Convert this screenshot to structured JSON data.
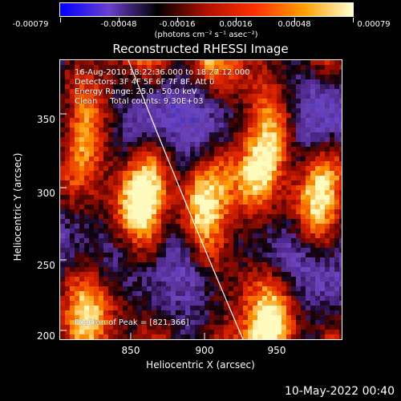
{
  "colorbar": {
    "tick_labels": [
      "-0.00079",
      "-0.00048",
      "-0.00016",
      "0.00016",
      "0.00048",
      "0.00079"
    ],
    "units_label": "(photons cm⁻² s⁻¹ asec⁻²)",
    "gradient": [
      "#0000ff",
      "#6a3fcf",
      "#000000",
      "#b01000",
      "#ff3000",
      "#ff9f00",
      "#ffffd0"
    ]
  },
  "title": "Reconstructed RHESSI Image",
  "info": {
    "line1": "16-Aug-2010 18:22:36.000 to 18:27:12.000",
    "line2": "Detectors: 3F 4F 5F 6F 7F 8F, Att 0",
    "line3": "Energy Range: 25.0 - 50.0 keV",
    "line4": "Clean     Total counts: 9.30E+03"
  },
  "peak_text": "Position of Peak = [821,366]",
  "axes": {
    "xlabel": "Heliocentric X (arcsec)",
    "ylabel": "Heliocentric Y (arcsec)",
    "xticks": [
      "850",
      "900",
      "950"
    ],
    "yticks": [
      "350",
      "300",
      "250",
      "200"
    ]
  },
  "timestamp": "10-May-2022 00:40"
}
